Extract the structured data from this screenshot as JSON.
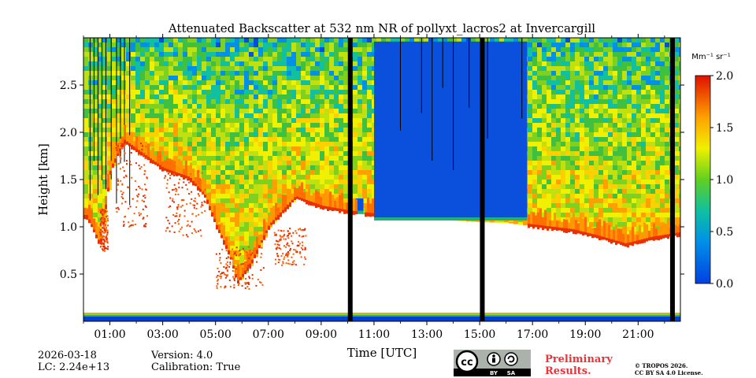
{
  "chart_data": {
    "type": "heatmap",
    "title": "Attenuated Backscatter at 532 nm NR of pollyxt_lacros2 at Invercargill",
    "xlabel": "Time [UTC]",
    "ylabel": "Height [km]",
    "x_tick_labels": [
      "01:00",
      "03:00",
      "05:00",
      "07:00",
      "09:00",
      "11:00",
      "13:00",
      "15:00",
      "17:00",
      "19:00",
      "21:00"
    ],
    "x_tick_hours": [
      1,
      3,
      5,
      7,
      9,
      11,
      13,
      15,
      17,
      19,
      21
    ],
    "x_range_hours": [
      0,
      22.6
    ],
    "y_tick_labels": [
      "0.5",
      "1.0",
      "1.5",
      "2.0",
      "2.5"
    ],
    "y_tick_values": [
      0.5,
      1.0,
      1.5,
      2.0,
      2.5
    ],
    "y_range_km": [
      0,
      3.0
    ],
    "colorbar": {
      "unit_label": "Mm⁻¹ sr⁻¹",
      "range": [
        0.0,
        2.0
      ],
      "tick_labels": [
        "0.0",
        "0.5",
        "1.0",
        "1.5",
        "2.0"
      ],
      "tick_values": [
        0.0,
        0.5,
        1.0,
        1.5,
        2.0
      ],
      "colormap": "jet"
    },
    "gaps_hours": [
      10.1,
      15.1,
      22.3
    ],
    "cloud_base_km": [
      {
        "hour": 0.1,
        "km": 1.1
      },
      {
        "hour": 0.6,
        "km": 0.8
      },
      {
        "hour": 1.0,
        "km": 1.6
      },
      {
        "hour": 1.5,
        "km": 1.9
      },
      {
        "hour": 2.0,
        "km": 1.8
      },
      {
        "hour": 3.0,
        "km": 1.6
      },
      {
        "hour": 4.0,
        "km": 1.5
      },
      {
        "hour": 4.6,
        "km": 1.3
      },
      {
        "hour": 5.0,
        "km": 1.0
      },
      {
        "hour": 5.5,
        "km": 0.7
      },
      {
        "hour": 5.8,
        "km": 0.4
      },
      {
        "hour": 6.3,
        "km": 0.6
      },
      {
        "hour": 7.0,
        "km": 1.0
      },
      {
        "hour": 8.0,
        "km": 1.3
      },
      {
        "hour": 9.0,
        "km": 1.2
      },
      {
        "hour": 10.0,
        "km": 1.15
      },
      {
        "hour": 11.5,
        "km": 1.1
      },
      {
        "hour": 13.0,
        "km": 1.08
      },
      {
        "hour": 15.0,
        "km": 1.05
      },
      {
        "hour": 16.0,
        "km": 1.04
      },
      {
        "hour": 17.0,
        "km": 1.0
      },
      {
        "hour": 18.5,
        "km": 0.95
      },
      {
        "hour": 19.5,
        "km": 0.88
      },
      {
        "hour": 20.5,
        "km": 0.8
      },
      {
        "hour": 21.5,
        "km": 0.87
      },
      {
        "hour": 22.6,
        "km": 0.92
      }
    ],
    "clear_segments_hours": [
      [
        10.3,
        10.6
      ],
      [
        11.0,
        16.8
      ]
    ]
  },
  "footer": {
    "date": "2026-03-18",
    "lc": "LC: 2.24e+13",
    "version": "Version: 4.0",
    "calibration": "Calibration: True",
    "preliminary_line1": "Preliminary",
    "preliminary_line2": "Results.",
    "copyright_line1": "© TROPOS 2026.",
    "copyright_line2": "CC BY SA 4.0 License.",
    "cc_labels": [
      "cc",
      "BY",
      "SA"
    ]
  }
}
